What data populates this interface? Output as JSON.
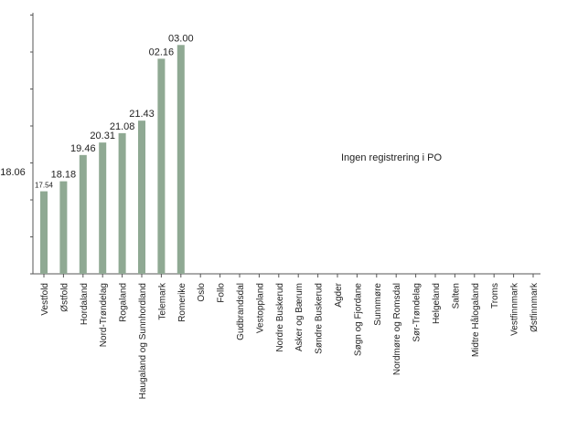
{
  "chart_data": {
    "type": "bar",
    "categories": [
      "Vestfold",
      "Østfold",
      "Hordaland",
      "Nord-Trøndelag",
      "Rogaland",
      "Haugaland og Sunnhordland",
      "Telemark",
      "Romerike",
      "Oslo",
      "Follo",
      "Gudbrandsdal",
      "Vestoppland",
      "Nordre Buskerud",
      "Asker og Bærum",
      "Søndre Buskerud",
      "Agder",
      "Søgn og Fjordane",
      "Sunnmøre",
      "Nordmøre og Romsdal",
      "Sør-Trøndelag",
      "Helgeland",
      "Salten",
      "Midtre Hålogaland",
      "Troms",
      "Vestfinnmark",
      "Østfinnmark"
    ],
    "values": [
      6.6,
      7.4,
      9.5,
      10.5,
      11.25,
      12.25,
      17.2,
      18.3,
      null,
      null,
      null,
      null,
      null,
      null,
      null,
      null,
      null,
      null,
      null,
      null,
      null,
      null,
      null,
      null,
      null,
      null
    ],
    "data_labels": [
      "17.54",
      "18.18",
      "19.46",
      "20.31",
      "21.08",
      "21.43",
      "02.16",
      "03.00",
      "",
      "",
      "",
      "",
      "",
      "",
      "",
      "",
      "",
      "",
      "",
      "",
      "",
      "",
      "",
      "",
      "",
      ""
    ],
    "reference_label": "18.06",
    "annotation": "Ingen registrering i PO",
    "ylim": [
      0,
      20
    ],
    "y_gridlines": false,
    "bar_color": "#8fa993",
    "title": "",
    "xlabel": "",
    "ylabel": ""
  }
}
